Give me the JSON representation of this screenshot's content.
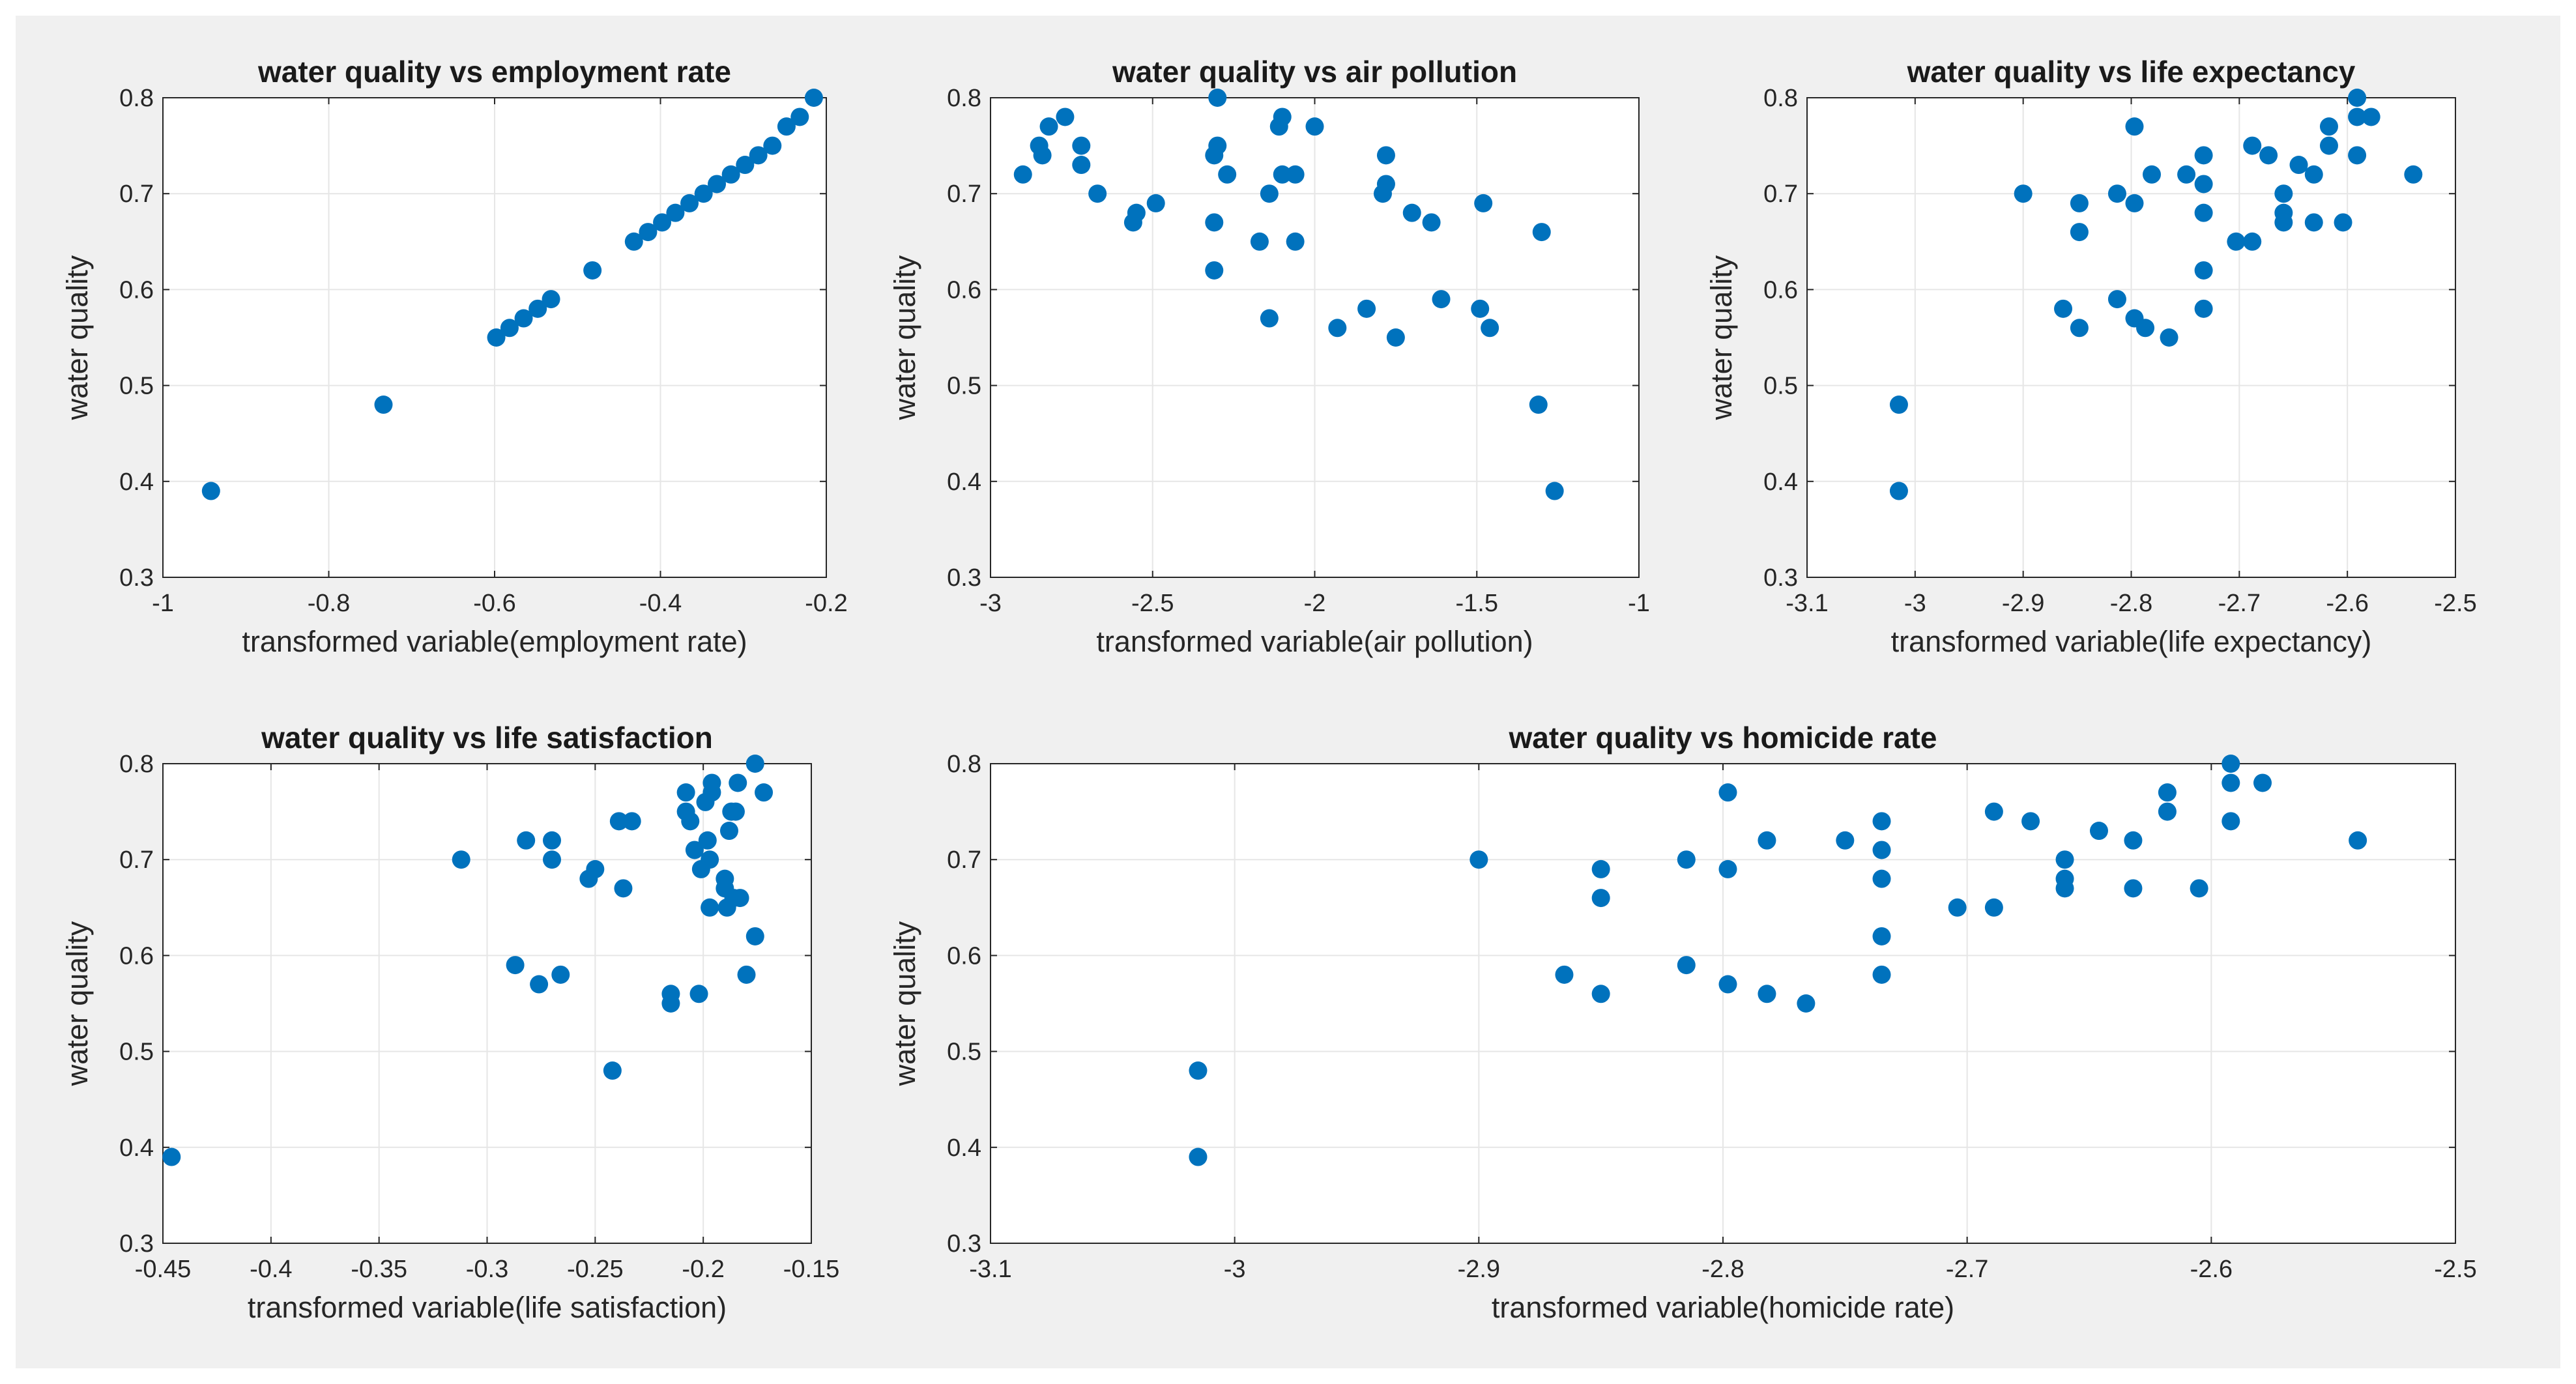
{
  "colors": {
    "figure_bg": "#f0f0f0",
    "axes_bg": "#ffffff",
    "marker": "#0072bd",
    "grid": "#e6e6e6",
    "axis": "#262626"
  },
  "chart_data": [
    {
      "type": "scatter",
      "title": "water quality vs employment rate",
      "xlabel": "transformed variable(employment rate)",
      "ylabel": "water quality",
      "xlim": [
        -1,
        -0.2
      ],
      "ylim": [
        0.3,
        0.8
      ],
      "xticks": [
        -1,
        -0.8,
        -0.6,
        -0.4,
        -0.2
      ],
      "xtick_labels": [
        "-1",
        "-0.8",
        "-0.6",
        "-0.4",
        "-0.2"
      ],
      "yticks": [
        0.3,
        0.4,
        0.5,
        0.6,
        0.7,
        0.8
      ],
      "ytick_labels": [
        "0.3",
        "0.4",
        "0.5",
        "0.6",
        "0.7",
        "0.8"
      ],
      "grid": true,
      "points": [
        [
          -0.942,
          0.39
        ],
        [
          -0.734,
          0.48
        ],
        [
          -0.598,
          0.55
        ],
        [
          -0.582,
          0.56
        ],
        [
          -0.565,
          0.57
        ],
        [
          -0.548,
          0.58
        ],
        [
          -0.532,
          0.59
        ],
        [
          -0.482,
          0.62
        ],
        [
          -0.432,
          0.65
        ],
        [
          -0.415,
          0.66
        ],
        [
          -0.398,
          0.67
        ],
        [
          -0.382,
          0.68
        ],
        [
          -0.365,
          0.69
        ],
        [
          -0.348,
          0.7
        ],
        [
          -0.332,
          0.71
        ],
        [
          -0.315,
          0.72
        ],
        [
          -0.298,
          0.73
        ],
        [
          -0.282,
          0.74
        ],
        [
          -0.265,
          0.75
        ],
        [
          -0.248,
          0.77
        ],
        [
          -0.232,
          0.78
        ],
        [
          -0.215,
          0.8
        ]
      ]
    },
    {
      "type": "scatter",
      "title": "water quality vs air pollution",
      "xlabel": "transformed variable(air pollution)",
      "ylabel": "water quality",
      "xlim": [
        -3,
        -1
      ],
      "ylim": [
        0.3,
        0.8
      ],
      "xticks": [
        -3,
        -2.5,
        -2,
        -1.5,
        -1
      ],
      "xtick_labels": [
        "-3",
        "-2.5",
        "-2",
        "-1.5",
        "-1"
      ],
      "yticks": [
        0.3,
        0.4,
        0.5,
        0.6,
        0.7,
        0.8
      ],
      "ytick_labels": [
        "0.3",
        "0.4",
        "0.5",
        "0.6",
        "0.7",
        "0.8"
      ],
      "grid": true,
      "points": [
        [
          -2.9,
          0.72
        ],
        [
          -2.85,
          0.75
        ],
        [
          -2.84,
          0.74
        ],
        [
          -2.82,
          0.77
        ],
        [
          -2.77,
          0.78
        ],
        [
          -2.72,
          0.75
        ],
        [
          -2.72,
          0.73
        ],
        [
          -2.67,
          0.7
        ],
        [
          -2.56,
          0.67
        ],
        [
          -2.55,
          0.68
        ],
        [
          -2.49,
          0.69
        ],
        [
          -2.31,
          0.74
        ],
        [
          -2.3,
          0.8
        ],
        [
          -2.3,
          0.75
        ],
        [
          -2.31,
          0.67
        ],
        [
          -2.31,
          0.62
        ],
        [
          -2.27,
          0.72
        ],
        [
          -2.17,
          0.65
        ],
        [
          -2.14,
          0.7
        ],
        [
          -2.14,
          0.57
        ],
        [
          -2.11,
          0.77
        ],
        [
          -2.1,
          0.78
        ],
        [
          -2.1,
          0.72
        ],
        [
          -2.06,
          0.72
        ],
        [
          -2.06,
          0.65
        ],
        [
          -2.0,
          0.77
        ],
        [
          -1.93,
          0.56
        ],
        [
          -1.84,
          0.58
        ],
        [
          -1.78,
          0.74
        ],
        [
          -1.78,
          0.71
        ],
        [
          -1.79,
          0.7
        ],
        [
          -1.75,
          0.55
        ],
        [
          -1.7,
          0.68
        ],
        [
          -1.64,
          0.67
        ],
        [
          -1.61,
          0.59
        ],
        [
          -1.48,
          0.69
        ],
        [
          -1.49,
          0.58
        ],
        [
          -1.46,
          0.56
        ],
        [
          -1.3,
          0.66
        ],
        [
          -1.31,
          0.48
        ],
        [
          -1.26,
          0.39
        ]
      ]
    },
    {
      "type": "scatter",
      "title": "water quality vs life expectancy",
      "xlabel": "transformed variable(life expectancy)",
      "ylabel": "water quality",
      "xlim": [
        -3.1,
        -2.5
      ],
      "ylim": [
        0.3,
        0.8
      ],
      "xticks": [
        -3.1,
        -3,
        -2.9,
        -2.8,
        -2.7,
        -2.6,
        -2.5
      ],
      "xtick_labels": [
        "-3.1",
        "-3",
        "-2.9",
        "-2.8",
        "-2.7",
        "-2.6",
        "-2.5"
      ],
      "yticks": [
        0.3,
        0.4,
        0.5,
        0.6,
        0.7,
        0.8
      ],
      "ytick_labels": [
        "0.3",
        "0.4",
        "0.5",
        "0.6",
        "0.7",
        "0.8"
      ],
      "grid": true,
      "points": [
        [
          -3.015,
          0.48
        ],
        [
          -3.015,
          0.39
        ],
        [
          -2.9,
          0.7
        ],
        [
          -2.863,
          0.58
        ],
        [
          -2.848,
          0.69
        ],
        [
          -2.848,
          0.66
        ],
        [
          -2.848,
          0.56
        ],
        [
          -2.813,
          0.7
        ],
        [
          -2.813,
          0.59
        ],
        [
          -2.797,
          0.77
        ],
        [
          -2.797,
          0.69
        ],
        [
          -2.797,
          0.57
        ],
        [
          -2.787,
          0.56
        ],
        [
          -2.781,
          0.72
        ],
        [
          -2.765,
          0.55
        ],
        [
          -2.749,
          0.72
        ],
        [
          -2.733,
          0.74
        ],
        [
          -2.733,
          0.71
        ],
        [
          -2.733,
          0.68
        ],
        [
          -2.733,
          0.62
        ],
        [
          -2.733,
          0.58
        ],
        [
          -2.703,
          0.65
        ],
        [
          -2.688,
          0.75
        ],
        [
          -2.688,
          0.65
        ],
        [
          -2.673,
          0.74
        ],
        [
          -2.659,
          0.7
        ],
        [
          -2.659,
          0.68
        ],
        [
          -2.659,
          0.67
        ],
        [
          -2.645,
          0.73
        ],
        [
          -2.631,
          0.72
        ],
        [
          -2.631,
          0.67
        ],
        [
          -2.617,
          0.77
        ],
        [
          -2.617,
          0.75
        ],
        [
          -2.604,
          0.67
        ],
        [
          -2.591,
          0.8
        ],
        [
          -2.591,
          0.78
        ],
        [
          -2.591,
          0.74
        ],
        [
          -2.578,
          0.78
        ],
        [
          -2.539,
          0.72
        ]
      ]
    },
    {
      "type": "scatter",
      "title": "water quality vs life satisfaction",
      "xlabel": "transformed variable(life satisfaction)",
      "ylabel": "water quality",
      "xlim": [
        -0.45,
        -0.15
      ],
      "ylim": [
        0.3,
        0.8
      ],
      "xticks": [
        -0.45,
        -0.4,
        -0.35,
        -0.3,
        -0.25,
        -0.2,
        -0.15
      ],
      "xtick_labels": [
        "-0.45",
        "-0.4",
        "-0.35",
        "-0.3",
        "-0.25",
        "-0.2",
        "-0.15"
      ],
      "yticks": [
        0.3,
        0.4,
        0.5,
        0.6,
        0.7,
        0.8
      ],
      "ytick_labels": [
        "0.3",
        "0.4",
        "0.5",
        "0.6",
        "0.7",
        "0.8"
      ],
      "grid": true,
      "points": [
        [
          -0.446,
          0.39
        ],
        [
          -0.312,
          0.7
        ],
        [
          -0.287,
          0.59
        ],
        [
          -0.282,
          0.72
        ],
        [
          -0.276,
          0.57
        ],
        [
          -0.27,
          0.72
        ],
        [
          -0.27,
          0.7
        ],
        [
          -0.266,
          0.58
        ],
        [
          -0.253,
          0.68
        ],
        [
          -0.25,
          0.69
        ],
        [
          -0.242,
          0.48
        ],
        [
          -0.239,
          0.74
        ],
        [
          -0.237,
          0.67
        ],
        [
          -0.233,
          0.74
        ],
        [
          -0.215,
          0.56
        ],
        [
          -0.215,
          0.55
        ],
        [
          -0.208,
          0.77
        ],
        [
          -0.208,
          0.75
        ],
        [
          -0.206,
          0.74
        ],
        [
          -0.204,
          0.71
        ],
        [
          -0.202,
          0.56
        ],
        [
          -0.201,
          0.69
        ],
        [
          -0.199,
          0.76
        ],
        [
          -0.198,
          0.72
        ],
        [
          -0.197,
          0.7
        ],
        [
          -0.197,
          0.65
        ],
        [
          -0.196,
          0.78
        ],
        [
          -0.196,
          0.77
        ],
        [
          -0.19,
          0.68
        ],
        [
          -0.19,
          0.67
        ],
        [
          -0.189,
          0.65
        ],
        [
          -0.188,
          0.73
        ],
        [
          -0.187,
          0.75
        ],
        [
          -0.186,
          0.66
        ],
        [
          -0.185,
          0.75
        ],
        [
          -0.184,
          0.78
        ],
        [
          -0.183,
          0.66
        ],
        [
          -0.18,
          0.58
        ],
        [
          -0.176,
          0.8
        ],
        [
          -0.176,
          0.62
        ],
        [
          -0.172,
          0.77
        ]
      ]
    },
    {
      "type": "scatter",
      "title": "water quality vs homicide rate",
      "xlabel": "transformed variable(homicide rate)",
      "ylabel": "water quality",
      "xlim": [
        -3.1,
        -2.5
      ],
      "ylim": [
        0.3,
        0.8
      ],
      "xticks": [
        -3.1,
        -3,
        -2.9,
        -2.8,
        -2.7,
        -2.6,
        -2.5
      ],
      "xtick_labels": [
        "-3.1",
        "-3",
        "-2.9",
        "-2.8",
        "-2.7",
        "-2.6",
        "-2.5"
      ],
      "yticks": [
        0.3,
        0.4,
        0.5,
        0.6,
        0.7,
        0.8
      ],
      "ytick_labels": [
        "0.3",
        "0.4",
        "0.5",
        "0.6",
        "0.7",
        "0.8"
      ],
      "grid": true,
      "points": [
        [
          -3.015,
          0.48
        ],
        [
          -3.015,
          0.39
        ],
        [
          -2.9,
          0.7
        ],
        [
          -2.865,
          0.58
        ],
        [
          -2.85,
          0.69
        ],
        [
          -2.85,
          0.66
        ],
        [
          -2.85,
          0.56
        ],
        [
          -2.815,
          0.7
        ],
        [
          -2.815,
          0.59
        ],
        [
          -2.798,
          0.77
        ],
        [
          -2.798,
          0.69
        ],
        [
          -2.798,
          0.57
        ],
        [
          -2.782,
          0.72
        ],
        [
          -2.782,
          0.56
        ],
        [
          -2.766,
          0.55
        ],
        [
          -2.75,
          0.72
        ],
        [
          -2.735,
          0.74
        ],
        [
          -2.735,
          0.71
        ],
        [
          -2.735,
          0.68
        ],
        [
          -2.735,
          0.62
        ],
        [
          -2.735,
          0.58
        ],
        [
          -2.704,
          0.65
        ],
        [
          -2.689,
          0.75
        ],
        [
          -2.689,
          0.65
        ],
        [
          -2.674,
          0.74
        ],
        [
          -2.66,
          0.7
        ],
        [
          -2.66,
          0.68
        ],
        [
          -2.66,
          0.67
        ],
        [
          -2.646,
          0.73
        ],
        [
          -2.632,
          0.72
        ],
        [
          -2.632,
          0.67
        ],
        [
          -2.618,
          0.77
        ],
        [
          -2.618,
          0.75
        ],
        [
          -2.605,
          0.67
        ],
        [
          -2.592,
          0.8
        ],
        [
          -2.592,
          0.78
        ],
        [
          -2.592,
          0.74
        ],
        [
          -2.579,
          0.78
        ],
        [
          -2.54,
          0.72
        ]
      ]
    }
  ]
}
